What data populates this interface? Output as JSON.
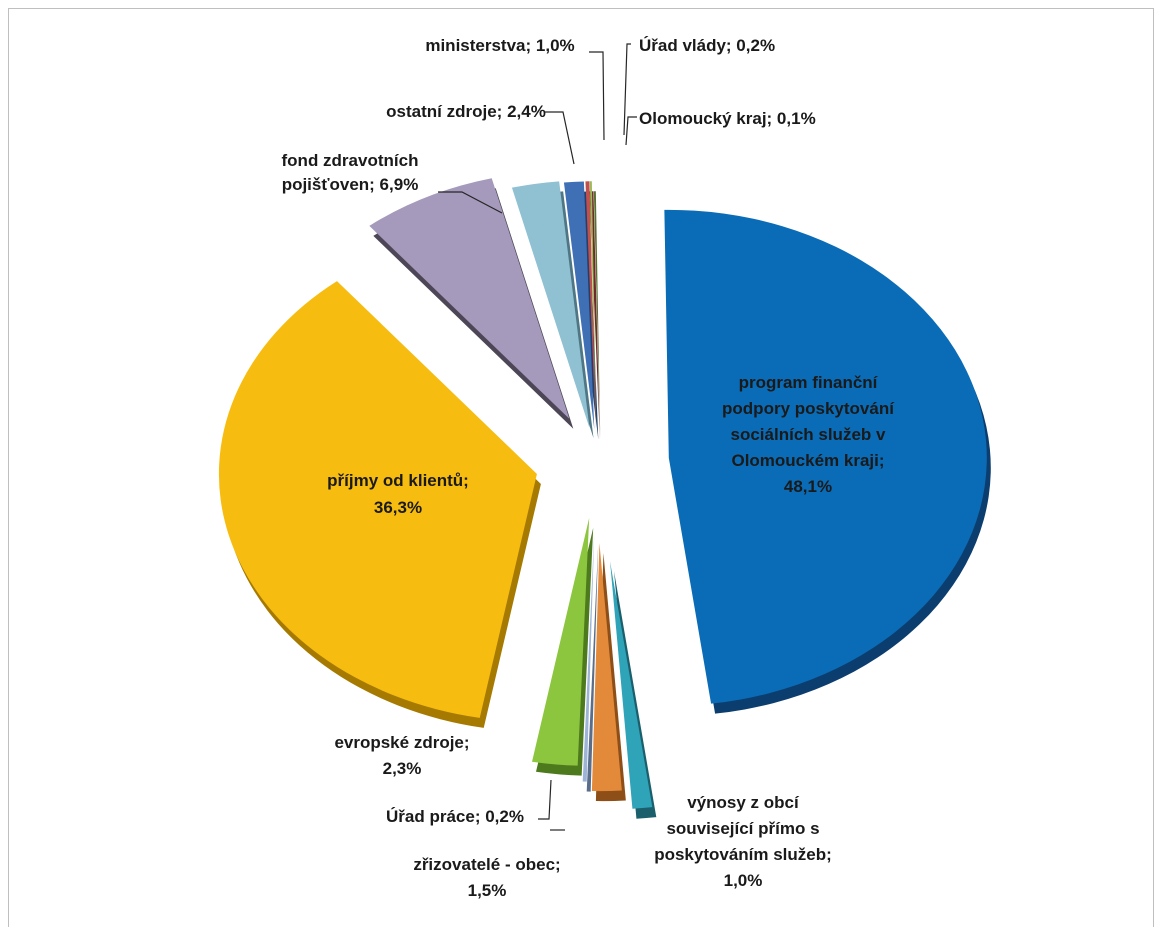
{
  "chart_data": {
    "type": "pie",
    "exploded": true,
    "slices": [
      {
        "label": "program finanční podpory poskytování sociálních služeb v Olomouckém kraji",
        "value": 48.1,
        "display": "48,1%",
        "color": "#0a6cb6",
        "side": "#0b3e6f",
        "lines": [
          "program finanční",
          "podpory poskytování",
          "sociálních služeb v",
          "Olomouckém kraji;",
          "48,1%"
        ]
      },
      {
        "label": "výnosy z obcí související přímo s poskytováním služeb",
        "value": 1.0,
        "display": "1,0%",
        "color": "#2fa3b8",
        "side": "#1b5f6c",
        "lines": [
          "výnosy z obcí",
          "související přímo s",
          "poskytováním služeb;",
          "1,0%"
        ]
      },
      {
        "label": "zřizovatelé - obec",
        "value": 1.5,
        "display": "1,5%",
        "color": "#e38a3a",
        "side": "#8d4f17",
        "lines": [
          "zřizovatelé - obec;",
          "1,5%"
        ]
      },
      {
        "label": "Úřad práce",
        "value": 0.2,
        "display": "0,2%",
        "color": "#9db4d6",
        "side": "#5a6e8b",
        "lines": [
          "Úřad práce; 0,2%"
        ]
      },
      {
        "label": "evropské zdroje",
        "value": 2.3,
        "display": "2,3%",
        "color": "#8cc63f",
        "side": "#4d7a1c",
        "lines": [
          "evropské zdroje;",
          "2,3%"
        ]
      },
      {
        "label": "příjmy od klientů",
        "value": 36.3,
        "display": "36,3%",
        "color": "#f7bc10",
        "side": "#a67a00",
        "lines": [
          "příjmy od klientů;",
          "36,3%"
        ]
      },
      {
        "label": "fond zdravotních pojišťoven",
        "value": 6.9,
        "display": "6,9%",
        "color": "#a59abb",
        "side": "#4d4656",
        "lines": [
          "fond zdravotních",
          "pojišťoven; 6,9%"
        ]
      },
      {
        "label": "ostatní zdroje",
        "value": 2.4,
        "display": "2,4%",
        "color": "#8fc1d3",
        "side": "#4f7684",
        "lines": [
          "ostatní zdroje; 2,4%"
        ]
      },
      {
        "label": "ministerstva",
        "value": 1.0,
        "display": "1,0%",
        "color": "#3f6fb5",
        "side": "#22406b",
        "lines": [
          "ministerstva; 1,0%"
        ]
      },
      {
        "label": "Úřad vlády",
        "value": 0.2,
        "display": "0,2%",
        "color": "#c0504d",
        "side": "#6d2a28",
        "lines": [
          "Úřad vlády; 0,2%"
        ]
      },
      {
        "label": "Olomoucký kraj",
        "value": 0.1,
        "display": "0,1%",
        "color": "#9bbb59",
        "side": "#5a7030",
        "lines": [
          "Olomoucký kraj; 0,1%"
        ]
      }
    ],
    "legend": "none",
    "data_labels": "category name; percentage"
  }
}
